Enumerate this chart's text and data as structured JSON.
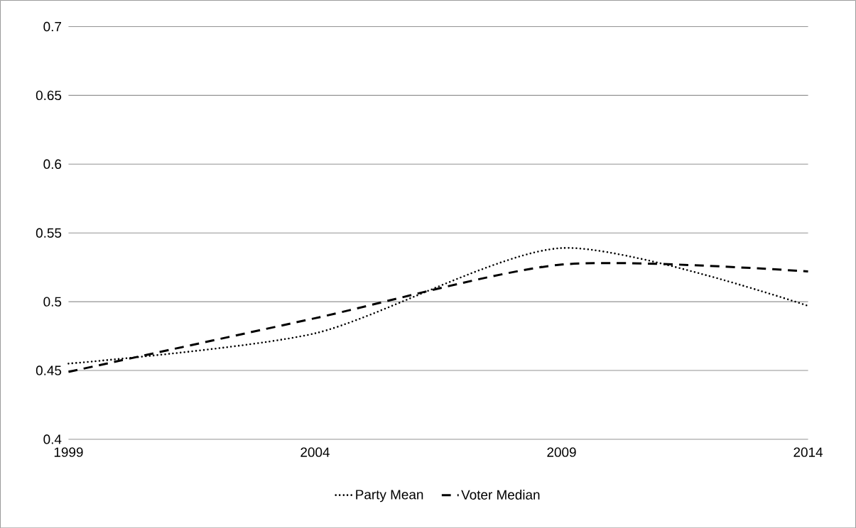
{
  "chart_data": {
    "type": "line",
    "categories": [
      "1999",
      "2004",
      "2009",
      "2014"
    ],
    "series": [
      {
        "name": "Party Mean",
        "color": "#000000",
        "line_style": "dotted",
        "values": [
          0.455,
          0.477,
          0.539,
          0.497
        ]
      },
      {
        "name": "Voter Median",
        "color": "#000000",
        "line_style": "dashed",
        "values": [
          0.449,
          0.488,
          0.527,
          0.522
        ]
      }
    ],
    "ylim": [
      0.4,
      0.7
    ],
    "yticks": [
      0.4,
      0.45,
      0.5,
      0.55,
      0.6,
      0.65,
      0.7
    ],
    "grid": "y",
    "legend": "bottom",
    "marker": "none"
  }
}
